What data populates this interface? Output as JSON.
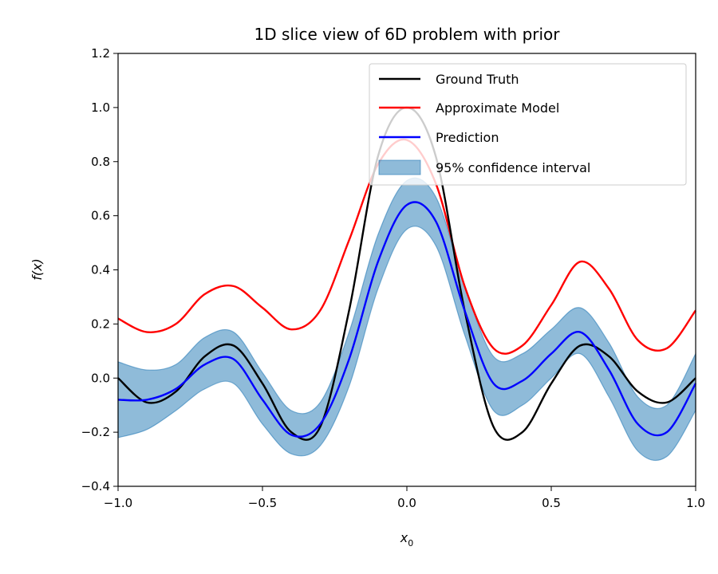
{
  "chart_data": {
    "type": "line",
    "title": "1D slice view of 6D problem with prior",
    "xlabel": "x",
    "xlabel_sub": "0",
    "ylabel": "f(x)",
    "xlim": [
      -1.0,
      1.0
    ],
    "ylim": [
      -0.4,
      1.2
    ],
    "xticks": [
      "−1.0",
      "−0.5",
      "0.0",
      "0.5",
      "1.0"
    ],
    "xtick_values": [
      -1.0,
      -0.5,
      0.0,
      0.5,
      1.0
    ],
    "yticks": [
      "−0.4",
      "−0.2",
      "0.0",
      "0.2",
      "0.4",
      "0.6",
      "0.8",
      "1.0",
      "1.2"
    ],
    "ytick_values": [
      -0.4,
      -0.2,
      0.0,
      0.2,
      0.4,
      0.6,
      0.8,
      1.0,
      1.2
    ],
    "grid": false,
    "legend_position": "top-right",
    "x": [
      -1.0,
      -0.9,
      -0.8,
      -0.7,
      -0.6,
      -0.5,
      -0.4,
      -0.3,
      -0.2,
      -0.1,
      0.0,
      0.1,
      0.2,
      0.3,
      0.4,
      0.5,
      0.6,
      0.7,
      0.8,
      0.9,
      1.0
    ],
    "series": [
      {
        "name": "Ground Truth",
        "color": "#000000",
        "values": [
          0.0,
          -0.09,
          -0.05,
          0.08,
          0.12,
          -0.02,
          -0.2,
          -0.18,
          0.25,
          0.82,
          1.0,
          0.82,
          0.25,
          -0.18,
          -0.2,
          -0.02,
          0.12,
          0.08,
          -0.05,
          -0.09,
          0.0
        ]
      },
      {
        "name": "Approximate Model",
        "color": "#ff0000",
        "values": [
          0.22,
          0.17,
          0.2,
          0.31,
          0.34,
          0.26,
          0.18,
          0.25,
          0.51,
          0.79,
          0.88,
          0.72,
          0.34,
          0.11,
          0.12,
          0.27,
          0.43,
          0.33,
          0.14,
          0.11,
          0.25
        ]
      },
      {
        "name": "Prediction",
        "color": "#0000ff",
        "values": [
          -0.08,
          -0.08,
          -0.04,
          0.05,
          0.07,
          -0.08,
          -0.21,
          -0.17,
          0.07,
          0.43,
          0.64,
          0.58,
          0.25,
          -0.02,
          -0.01,
          0.09,
          0.17,
          0.03,
          -0.17,
          -0.2,
          -0.02
        ]
      }
    ],
    "band": {
      "name": "95% confidence interval",
      "color": "#1f77b4",
      "lower": [
        -0.22,
        -0.19,
        -0.12,
        -0.04,
        -0.02,
        -0.17,
        -0.28,
        -0.25,
        -0.03,
        0.33,
        0.55,
        0.49,
        0.16,
        -0.12,
        -0.1,
        0.0,
        0.09,
        -0.07,
        -0.27,
        -0.29,
        -0.12
      ],
      "upper": [
        0.06,
        0.03,
        0.05,
        0.15,
        0.17,
        0.02,
        -0.12,
        -0.09,
        0.17,
        0.53,
        0.73,
        0.67,
        0.34,
        0.08,
        0.09,
        0.18,
        0.26,
        0.13,
        -0.07,
        -0.1,
        0.09
      ]
    }
  }
}
